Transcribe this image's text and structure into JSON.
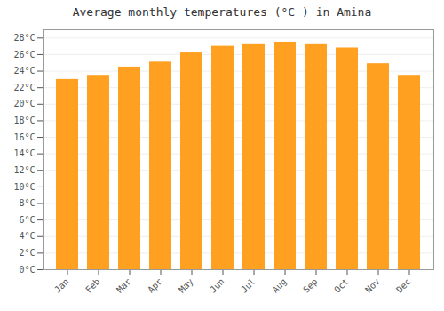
{
  "chart_data": {
    "type": "bar",
    "title": "Average monthly temperatures (°C ) in Amina",
    "categories": [
      "Jan",
      "Feb",
      "Mar",
      "Apr",
      "May",
      "Jun",
      "Jul",
      "Aug",
      "Sep",
      "Oct",
      "Nov",
      "Dec"
    ],
    "values": [
      23.0,
      23.5,
      24.5,
      25.1,
      26.2,
      27.0,
      27.3,
      27.5,
      27.3,
      26.8,
      24.9,
      23.5
    ],
    "color": "#FFA020",
    "ylim": [
      0,
      29
    ],
    "yticks": [
      {
        "value": 0,
        "label": "0°C"
      },
      {
        "value": 2,
        "label": "2°C"
      },
      {
        "value": 4,
        "label": "4°C"
      },
      {
        "value": 6,
        "label": "6°C"
      },
      {
        "value": 8,
        "label": "8°C"
      },
      {
        "value": 10,
        "label": "10°C"
      },
      {
        "value": 12,
        "label": "12°C"
      },
      {
        "value": 14,
        "label": "14°C"
      },
      {
        "value": 16,
        "label": "16°C"
      },
      {
        "value": 18,
        "label": "18°C"
      },
      {
        "value": 20,
        "label": "20°C"
      },
      {
        "value": 22,
        "label": "22°C"
      },
      {
        "value": 24,
        "label": "24°C"
      },
      {
        "value": 26,
        "label": "26°C"
      },
      {
        "value": 28,
        "label": "28°C"
      }
    ],
    "grid": true
  }
}
